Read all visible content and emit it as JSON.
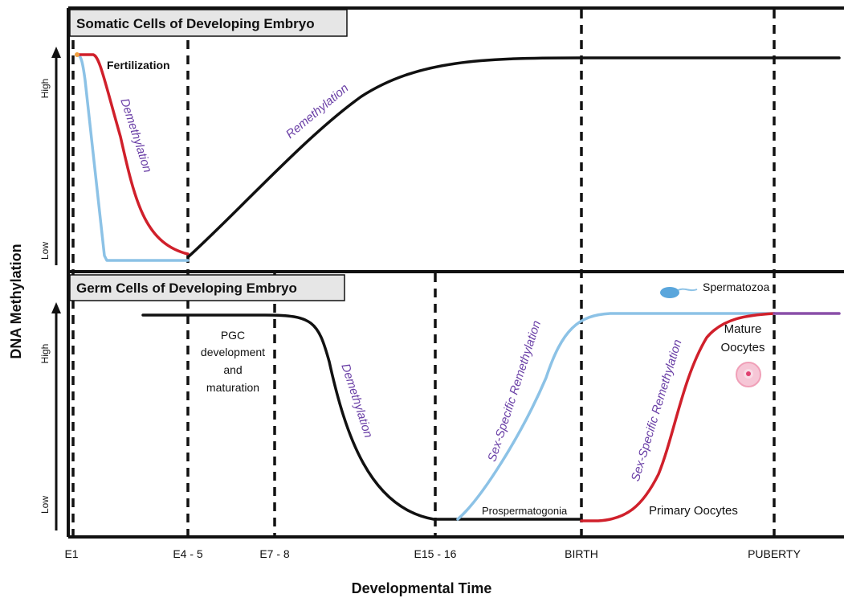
{
  "y_axis_label": "DNA Methylation",
  "x_axis_label": "Developmental Time",
  "timepoints": [
    "E1",
    "E4 - 5",
    "E7 - 8",
    "E15 - 16",
    "BIRTH",
    "PUBERTY"
  ],
  "somatic": {
    "title": "Somatic Cells of Developing Embryo",
    "high": "High",
    "low": "Low",
    "fertilization": "Fertilization",
    "demethylation": "Demethylation",
    "remethylation": "Remethylation"
  },
  "germ": {
    "title": "Germ Cells of Developing Embryo",
    "high": "High",
    "low": "Low",
    "pgc": [
      "PGC",
      "development",
      "and",
      "maturation"
    ],
    "demethylation": "Demethylation",
    "male_remethylation": "Sex-Specific Remethylation",
    "female_remethylation": "Sex-Specific Remethylation",
    "prospermatogonia": "Prospermatogonia",
    "primary_oocytes": "Primary Oocytes",
    "spermatozoa": "Spermatozoa",
    "mature_oocytes": [
      "Mature",
      "Oocytes"
    ]
  }
}
